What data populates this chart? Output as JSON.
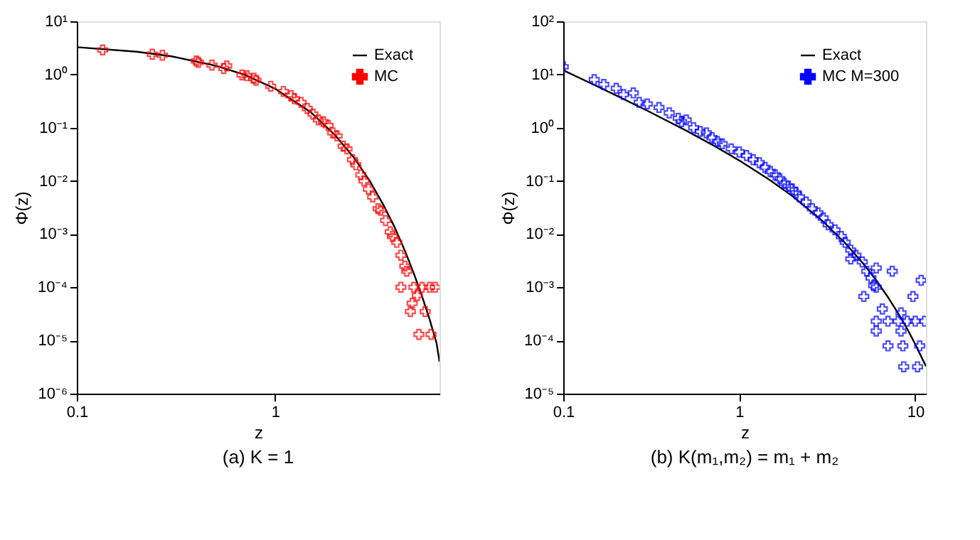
{
  "chart_data": [
    {
      "type": "scatter",
      "annotations": [
        "(a) K = 1"
      ],
      "xlabel": "z",
      "ylabel": "Φ(z)",
      "log": "xy",
      "grid": false,
      "legend": "top right",
      "xlim": [
        0.1,
        6.73
      ],
      "xticks": [
        0.1,
        1
      ],
      "ylim": [
        1e-06,
        10
      ],
      "yticks": [
        {
          "value": 1e-06,
          "label": "10⁻⁶"
        },
        {
          "value": 1e-05,
          "label": "10⁻⁵"
        },
        {
          "value": 0.0001,
          "label": "10⁻⁴"
        },
        {
          "value": 0.001,
          "label": "10⁻³"
        },
        {
          "value": 0.01,
          "label": "10⁻²"
        },
        {
          "value": 0.1,
          "label": "10⁻¹"
        },
        {
          "value": 1,
          "label": "10⁰"
        },
        {
          "value": 10,
          "label": "10¹"
        }
      ],
      "series": [
        {
          "name": "Exact",
          "type": "line",
          "marker": "none",
          "color": "#000000",
          "x": [
            0.1,
            0.2,
            0.3,
            0.5,
            0.7,
            1,
            1.5,
            2,
            2.5,
            3,
            3.5,
            4,
            4.5,
            5,
            5.5,
            6,
            6.5,
            6.73
          ],
          "values": [
            3.27,
            2.68,
            2.2,
            1.47,
            0.99,
            0.54,
            0.2,
            0.073,
            0.027,
            0.0099,
            0.0036,
            0.00134,
            0.00049,
            0.00018,
            6.7e-05,
            2.5e-05,
            9e-06,
            4e-06
          ]
        },
        {
          "name": "MC",
          "type": "scatter",
          "marker": "cross",
          "color": "#ff0000",
          "x": [
            0.135,
            0.24,
            0.27,
            0.4,
            0.41,
            0.48,
            0.55,
            0.57,
            0.68,
            0.72,
            0.78,
            0.8,
            0.95,
            1.1,
            1.2,
            1.25,
            1.35,
            1.45,
            1.55,
            1.65,
            1.75,
            1.85,
            1.95,
            2.05,
            2.2,
            2.3,
            2.45,
            2.55,
            2.7,
            2.8,
            2.95,
            3.1,
            3.3,
            3.4,
            3.6,
            3.8,
            3.9,
            4.1,
            4.3,
            4.5,
            4.6,
            4.3,
            5.0,
            5.5,
            6.0,
            6.4,
            4.9,
            5.2,
            4.8,
            5.7,
            5.3,
            6.1
          ],
          "values": [
            2.9,
            2.4,
            2.3,
            1.8,
            1.7,
            1.5,
            1.3,
            1.45,
            0.98,
            0.95,
            0.85,
            0.78,
            0.6,
            0.48,
            0.4,
            0.35,
            0.3,
            0.23,
            0.18,
            0.14,
            0.13,
            0.11,
            0.08,
            0.07,
            0.045,
            0.04,
            0.025,
            0.02,
            0.013,
            0.01,
            0.007,
            0.005,
            0.003,
            0.0028,
            0.0018,
            0.0011,
            0.0009,
            0.0007,
            0.0004,
            0.00025,
            0.0002,
            0.0001,
            0.0001,
            0.0001,
            0.0001,
            0.0001,
            5e-05,
            7e-05,
            3.5e-05,
            3.5e-05,
            1.3e-05,
            1.3e-05
          ]
        }
      ]
    },
    {
      "type": "scatter",
      "annotations": [
        "(b) K(m₁,m₂) = m₁ + m₂"
      ],
      "xlabel": "z",
      "ylabel": "Φ(z)",
      "log": "xy",
      "grid": false,
      "legend": "top right",
      "xlim": [
        0.1,
        11.5
      ],
      "xticks": [
        0.1,
        1,
        10
      ],
      "ylim": [
        1e-05,
        100
      ],
      "yticks": [
        {
          "value": 1e-05,
          "label": "10⁻⁵"
        },
        {
          "value": 0.0001,
          "label": "10⁻⁴"
        },
        {
          "value": 0.001,
          "label": "10⁻³"
        },
        {
          "value": 0.01,
          "label": "10⁻²"
        },
        {
          "value": 0.1,
          "label": "10⁻¹"
        },
        {
          "value": 1,
          "label": "10⁰"
        },
        {
          "value": 10,
          "label": "10¹"
        },
        {
          "value": 100,
          "label": "10²"
        }
      ],
      "series": [
        {
          "name": "Exact",
          "type": "line",
          "marker": "none",
          "color": "#000000",
          "x": [
            0.1,
            0.15,
            0.2,
            0.3,
            0.5,
            0.7,
            1,
            1.5,
            2,
            3,
            4,
            5,
            6,
            7,
            8,
            9,
            10,
            11.5
          ],
          "values": [
            12.0,
            6.37,
            4.04,
            2.09,
            0.879,
            0.48,
            0.242,
            0.1026,
            0.0519,
            0.01713,
            0.00675,
            0.00293,
            0.00135,
            0.00065,
            0.000323,
            0.000164,
            8.5e-05,
            3.26e-05
          ]
        },
        {
          "name": "MC M=300",
          "type": "scatter",
          "marker": "cross",
          "color": "#0000ff",
          "x": [
            0.1,
            0.15,
            0.17,
            0.2,
            0.22,
            0.25,
            0.27,
            0.3,
            0.35,
            0.4,
            0.45,
            0.47,
            0.5,
            0.55,
            0.6,
            0.65,
            0.7,
            0.75,
            0.8,
            0.9,
            1.0,
            1.1,
            1.2,
            1.3,
            1.4,
            1.5,
            1.6,
            1.7,
            1.8,
            1.9,
            2.0,
            2.1,
            2.2,
            2.4,
            2.6,
            2.8,
            3.0,
            3.2,
            3.5,
            3.8,
            4.0,
            4.3,
            4.6,
            5.0,
            5.3,
            5.6,
            6.0,
            7.4,
            10.8,
            5.1,
            9.7,
            6.0,
            7.0,
            8.0,
            9.0,
            10.0,
            11.3,
            6.0,
            8.3,
            7.0,
            8.5,
            10.6,
            8.6,
            10.3,
            8.3,
            5.8,
            6.5,
            6.0,
            4.3
          ],
          "values": [
            14,
            8,
            6.5,
            5.5,
            4.2,
            4.5,
            3,
            2.8,
            2.4,
            1.9,
            1.5,
            1.3,
            1.4,
            1.0,
            0.85,
            0.8,
            0.65,
            0.55,
            0.5,
            0.4,
            0.35,
            0.3,
            0.25,
            0.22,
            0.18,
            0.15,
            0.13,
            0.11,
            0.09,
            0.08,
            0.07,
            0.06,
            0.05,
            0.04,
            0.03,
            0.025,
            0.02,
            0.015,
            0.012,
            0.009,
            0.007,
            0.005,
            0.004,
            0.003,
            0.002,
            0.0015,
            0.001,
            0.002,
            0.00135,
            0.00067,
            0.00067,
            0.00023,
            0.00023,
            0.00023,
            0.00023,
            0.00023,
            0.00023,
            0.00015,
            0.00015,
            7.9e-05,
            7.9e-05,
            7.9e-05,
            3.2e-05,
            3.2e-05,
            0.00033,
            0.00107,
            0.00039,
            0.0023,
            0.0034
          ]
        }
      ]
    }
  ]
}
